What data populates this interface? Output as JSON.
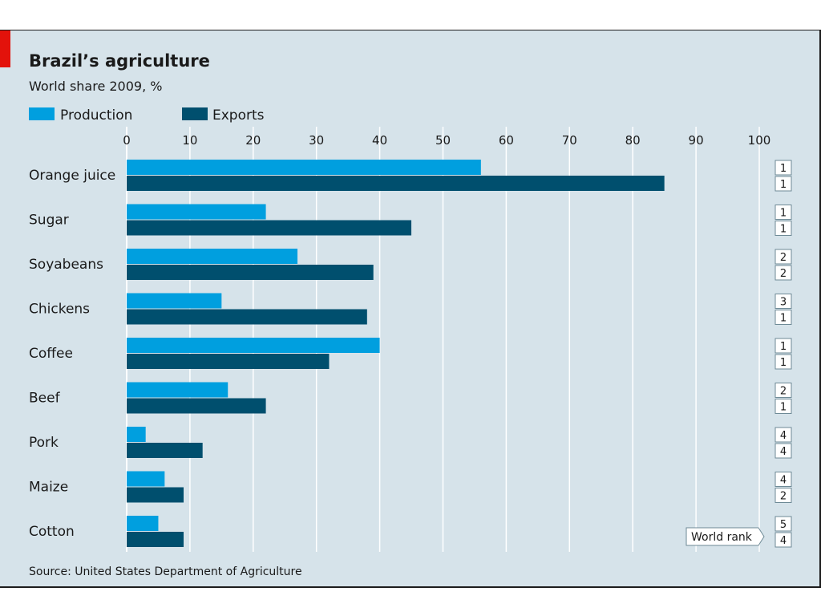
{
  "colors": {
    "production": "#009fdf",
    "exports": "#004f6e",
    "background": "#d6e3ea",
    "accent": "#e3120b",
    "grid": "#ffffff"
  },
  "chart_data": {
    "type": "bar",
    "orientation": "horizontal",
    "title": "Brazil’s agriculture",
    "subtitle": "World share 2009, %",
    "source": "Source: United States Department of Agriculture",
    "categories": [
      "Orange juice",
      "Sugar",
      "Soyabeans",
      "Chickens",
      "Coffee",
      "Beef",
      "Pork",
      "Maize",
      "Cotton"
    ],
    "series": [
      {
        "name": "Production",
        "values": [
          56,
          22,
          27,
          15,
          40,
          16,
          3,
          6,
          5
        ]
      },
      {
        "name": "Exports",
        "values": [
          85,
          45,
          39,
          38,
          32,
          22,
          12,
          9,
          9
        ]
      }
    ],
    "xlim": [
      0,
      100
    ],
    "xticks": [
      "0",
      "10",
      "20",
      "30",
      "40",
      "50",
      "60",
      "70",
      "80",
      "90",
      "100"
    ],
    "grid": true,
    "legend_position": "top-left",
    "world_rank": {
      "label": "World rank",
      "production": [
        "1",
        "1",
        "2",
        "3",
        "1",
        "2",
        "4",
        "4",
        "5"
      ],
      "exports": [
        "1",
        "1",
        "2",
        "1",
        "1",
        "1",
        "4",
        "2",
        "4"
      ]
    }
  }
}
